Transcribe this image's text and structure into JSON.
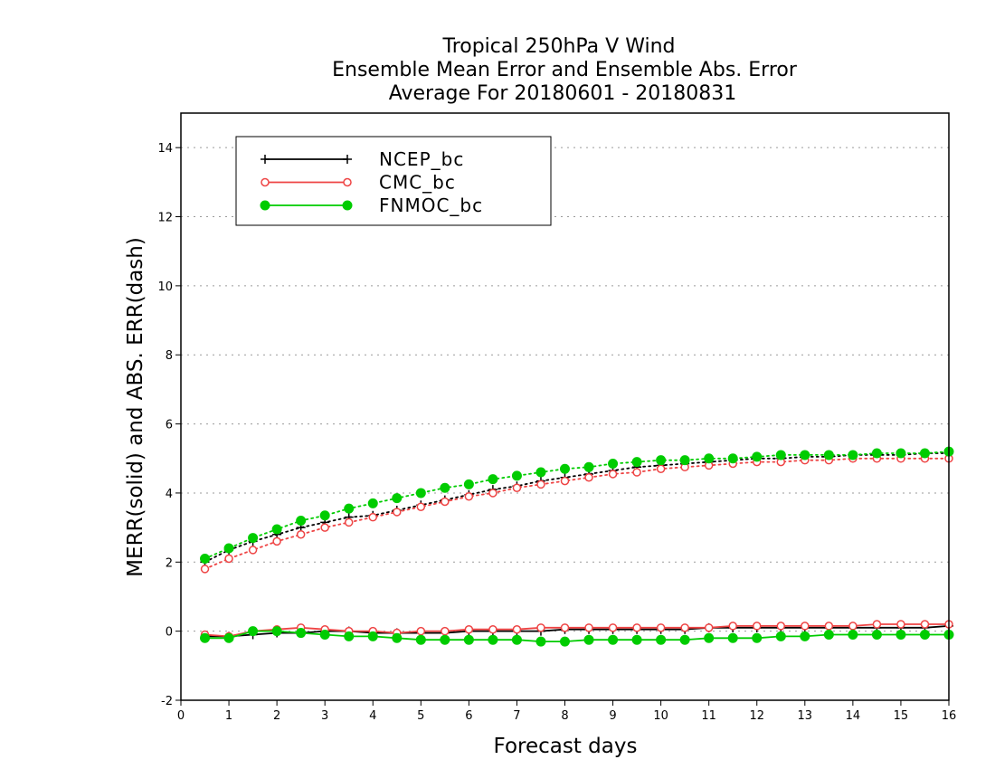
{
  "chart_data": {
    "type": "line",
    "title_lines": [
      "Tropical 250hPa V Wind",
      "Ensemble Mean Error and Ensemble Abs. Error",
      "Average For 20180601 - 20180831"
    ],
    "xlabel": "Forecast days",
    "ylabel": "MERR(solid) and ABS. ERR(dash)",
    "xlim": [
      0,
      16
    ],
    "ylim": [
      -2,
      15
    ],
    "x_ticks": [
      "0",
      "1",
      "2",
      "3",
      "4",
      "5",
      "6",
      "7",
      "8",
      "9",
      "10",
      "11",
      "12",
      "13",
      "14",
      "15",
      "16"
    ],
    "y_ticks": [
      "-2",
      "0",
      "2",
      "4",
      "6",
      "8",
      "10",
      "12",
      "14"
    ],
    "grid": "horizontal dotted",
    "legend_position": "top-left",
    "x": [
      0.5,
      1,
      1.5,
      2,
      2.5,
      3,
      3.5,
      4,
      4.5,
      5,
      5.5,
      6,
      6.5,
      7,
      7.5,
      8,
      8.5,
      9,
      9.5,
      10,
      10.5,
      11,
      11.5,
      12,
      12.5,
      13,
      13.5,
      14,
      14.5,
      15,
      15.5,
      16
    ],
    "series": [
      {
        "name": "NCEP_bc",
        "color": "#000000",
        "marker": "plus",
        "merr": [
          -0.15,
          -0.15,
          -0.1,
          -0.05,
          -0.05,
          0.0,
          0.0,
          -0.05,
          -0.05,
          -0.05,
          -0.05,
          0.0,
          0.0,
          0.0,
          0.0,
          0.05,
          0.05,
          0.05,
          0.05,
          0.05,
          0.05,
          0.1,
          0.1,
          0.1,
          0.1,
          0.1,
          0.1,
          0.1,
          0.1,
          0.1,
          0.1,
          0.15
        ],
        "abs_err": [
          2.0,
          2.35,
          2.6,
          2.8,
          3.0,
          3.15,
          3.3,
          3.35,
          3.5,
          3.65,
          3.8,
          3.95,
          4.1,
          4.2,
          4.35,
          4.45,
          4.55,
          4.65,
          4.75,
          4.8,
          4.85,
          4.9,
          4.95,
          5.0,
          5.0,
          5.05,
          5.05,
          5.1,
          5.1,
          5.1,
          5.15,
          5.15
        ]
      },
      {
        "name": "CMC_bc",
        "color": "#ee4444",
        "marker": "open-circle",
        "merr": [
          -0.1,
          -0.15,
          0.0,
          0.05,
          0.1,
          0.05,
          0.0,
          0.0,
          -0.05,
          0.0,
          0.0,
          0.05,
          0.05,
          0.05,
          0.1,
          0.1,
          0.1,
          0.1,
          0.1,
          0.1,
          0.1,
          0.1,
          0.15,
          0.15,
          0.15,
          0.15,
          0.15,
          0.15,
          0.2,
          0.2,
          0.2,
          0.2
        ],
        "abs_err": [
          1.8,
          2.1,
          2.35,
          2.6,
          2.8,
          3.0,
          3.15,
          3.3,
          3.45,
          3.6,
          3.75,
          3.9,
          4.0,
          4.15,
          4.25,
          4.35,
          4.45,
          4.55,
          4.6,
          4.7,
          4.75,
          4.8,
          4.85,
          4.9,
          4.9,
          4.95,
          4.95,
          5.0,
          5.0,
          5.0,
          5.0,
          5.0
        ]
      },
      {
        "name": "FNMOC_bc",
        "color": "#00cc00",
        "marker": "filled-circle",
        "merr": [
          -0.2,
          -0.2,
          0.0,
          0.0,
          -0.05,
          -0.1,
          -0.15,
          -0.15,
          -0.2,
          -0.25,
          -0.25,
          -0.25,
          -0.25,
          -0.25,
          -0.3,
          -0.3,
          -0.25,
          -0.25,
          -0.25,
          -0.25,
          -0.25,
          -0.2,
          -0.2,
          -0.2,
          -0.15,
          -0.15,
          -0.1,
          -0.1,
          -0.1,
          -0.1,
          -0.1,
          -0.1
        ],
        "abs_err": [
          2.1,
          2.4,
          2.7,
          2.95,
          3.2,
          3.35,
          3.55,
          3.7,
          3.85,
          4.0,
          4.15,
          4.25,
          4.4,
          4.5,
          4.6,
          4.7,
          4.75,
          4.85,
          4.9,
          4.95,
          4.95,
          5.0,
          5.0,
          5.05,
          5.1,
          5.1,
          5.1,
          5.1,
          5.15,
          5.15,
          5.15,
          5.2
        ]
      }
    ]
  }
}
